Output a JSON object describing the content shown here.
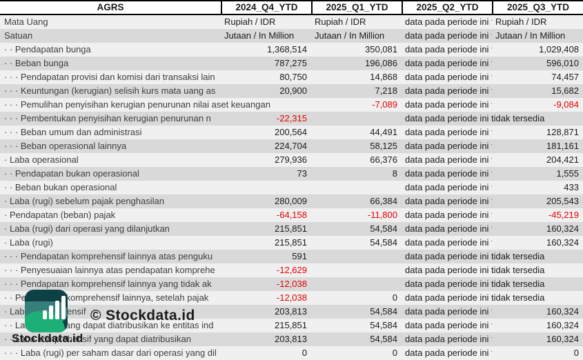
{
  "table": {
    "columns": [
      "AGRS",
      "2024_Q4_YTD",
      "2025_Q1_YTD",
      "2025_Q2_YTD",
      "2025_Q3_YTD"
    ],
    "unavailable_text": "data pada periode ini tidak tersedia",
    "rows": [
      {
        "label": "Mata Uang",
        "q4": "Rupiah / IDR",
        "q1": "Rupiah / IDR",
        "q2": "data pada periode ini tidak tersedia",
        "q3": "Rupiah / IDR"
      },
      {
        "label": "Satuan",
        "q4": "Jutaan / In Million",
        "q1": "Jutaan / In Million",
        "q2": "data pada periode ini tidak tersedia",
        "q3": "Jutaan / In Million"
      },
      {
        "label": "· · Pendapatan bunga",
        "q4": "1,368,514",
        "q1": "350,081",
        "q2": "data pada periode ini tidak tersedia",
        "q3": "1,029,408"
      },
      {
        "label": "· · Beban bunga",
        "q4": "787,275",
        "q1": "196,086",
        "q2": "data pada periode ini tidak tersedia",
        "q3": "596,010"
      },
      {
        "label": "· · · Pendapatan provisi dan komisi dari transaksi lain",
        "q4": "80,750",
        "q1": "14,868",
        "q2": "data pada periode ini tidak tersedia",
        "q3": "74,457"
      },
      {
        "label": "· · · Keuntungan (kerugian) selisih kurs mata uang as",
        "q4": "20,900",
        "q1": "7,218",
        "q2": "data pada periode ini tidak tersedia",
        "q3": "15,682"
      },
      {
        "label": "· · · Pemulihan penyisihan kerugian penurunan nilai aset keuangan",
        "q4": "",
        "q1": "-7,089",
        "q2": "data pada periode ini tidak tersedia",
        "q3": "-9,084"
      },
      {
        "label": "· · · Pembentukan penyisihan kerugian penurunan n",
        "q4": "-22,315",
        "q1": "",
        "q2": "data pada periode ini tidak tersedia",
        "q3": ""
      },
      {
        "label": "· · · Beban umum dan administrasi",
        "q4": "200,564",
        "q1": "44,491",
        "q2": "data pada periode ini tidak tersedia",
        "q3": "128,871"
      },
      {
        "label": "· · · Beban operasional lainnya",
        "q4": "224,704",
        "q1": "58,125",
        "q2": "data pada periode ini tidak tersedia",
        "q3": "181,161"
      },
      {
        "label": "· Laba operasional",
        "q4": "279,936",
        "q1": "66,376",
        "q2": "data pada periode ini tidak tersedia",
        "q3": "204,421"
      },
      {
        "label": "· · Pendapatan bukan operasional",
        "q4": "73",
        "q1": "8",
        "q2": "data pada periode ini tidak tersedia",
        "q3": "1,555"
      },
      {
        "label": "· · Beban bukan operasional",
        "q4": "",
        "q1": "",
        "q2": "data pada periode ini tidak tersedia",
        "q3": "433"
      },
      {
        "label": "· Laba (rugi) sebelum pajak penghasilan",
        "q4": "280,009",
        "q1": "66,384",
        "q2": "data pada periode ini tidak tersedia",
        "q3": "205,543"
      },
      {
        "label": "· Pendapatan (beban) pajak",
        "q4": "-64,158",
        "q1": "-11,800",
        "q2": "data pada periode ini tidak tersedia",
        "q3": "-45,219"
      },
      {
        "label": "· Laba (rugi) dari operasi yang dilanjutkan",
        "q4": "215,851",
        "q1": "54,584",
        "q2": "data pada periode ini tidak tersedia",
        "q3": "160,324"
      },
      {
        "label": "· Laba (rugi)",
        "q4": "215,851",
        "q1": "54,584",
        "q2": "data pada periode ini tidak tersedia",
        "q3": "160,324"
      },
      {
        "label": "· · · Pendapatan komprehensif lainnya atas penguku",
        "q4": "591",
        "q1": "",
        "q2": "data pada periode ini tidak tersedia",
        "q3": ""
      },
      {
        "label": "· · · Penyesuaian lainnya atas pendapatan komprehe",
        "q4": "-12,629",
        "q1": "",
        "q2": "data pada periode ini tidak tersedia",
        "q3": ""
      },
      {
        "label": "· · · Pendapatan komprehensif lainnya yang tidak ak",
        "q4": "-12,038",
        "q1": "",
        "q2": "data pada periode ini tidak tersedia",
        "q3": ""
      },
      {
        "label": "· · Pendapatan komprehensif lainnya, setelah pajak",
        "q4": "-12,038",
        "q1": "0",
        "q2": "data pada periode ini tidak tersedia",
        "q3": ""
      },
      {
        "label": "· Laba komprehensif",
        "q4": "203,813",
        "q1": "54,584",
        "q2": "data pada periode ini tidak tersedia",
        "q3": "160,324"
      },
      {
        "label": "· · Laba (rugi) yang dapat diatribusikan ke entitas ind",
        "q4": "215,851",
        "q1": "54,584",
        "q2": "data pada periode ini tidak tersedia",
        "q3": "160,324"
      },
      {
        "label": "· · Laba komprehensif yang dapat diatribusikan",
        "q4": "203,813",
        "q1": "54,584",
        "q2": "data pada periode ini tidak tersedia",
        "q3": "160,324"
      },
      {
        "label": "· · · Laba (rugi) per saham dasar dari operasi yang dil",
        "q4": "0",
        "q1": "0",
        "q2": "data pada periode ini tidak tersedia",
        "q3": "0"
      }
    ]
  },
  "watermark": {
    "text": "© Stockdata.id"
  },
  "brand": {
    "name": "Stockdata.id",
    "logo": "bar-chart-logo"
  },
  "colors": {
    "stripe_light": "#f0f0f0",
    "stripe_dark": "#d9d9d9",
    "negative": "#e60000",
    "logo_dark": "#0d4145",
    "logo_teal": "#377f7c",
    "logo_green": "#1caf77"
  }
}
